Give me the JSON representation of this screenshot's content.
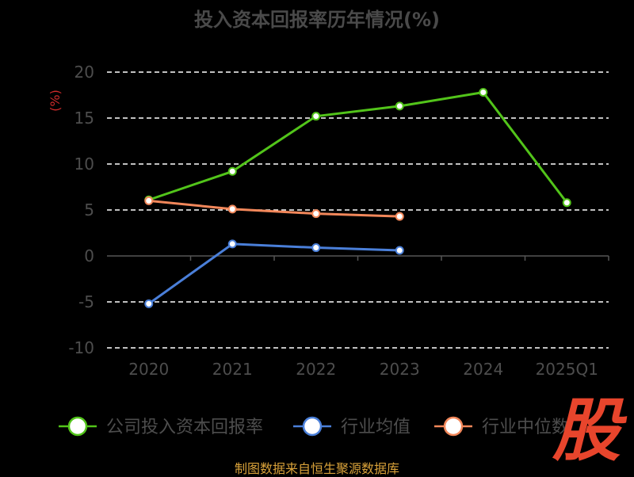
{
  "chart_data": {
    "type": "line",
    "title": "投入资本回报率历年情况(%)",
    "ylabel": "(%)",
    "categories": [
      "2020",
      "2021",
      "2022",
      "2023",
      "2024",
      "2025Q1"
    ],
    "ylim": [
      -10,
      20
    ],
    "yticks": [
      20,
      15,
      10,
      5,
      0,
      -5,
      -10
    ],
    "grid": true,
    "legend_position": "bottom",
    "series": [
      {
        "name": "公司投入资本回报率",
        "color": "#52c41a",
        "values": [
          6.1,
          9.2,
          15.2,
          16.3,
          17.8,
          5.8
        ]
      },
      {
        "name": "行业均值",
        "color": "#4a7fd9",
        "values": [
          -5.2,
          1.3,
          0.9,
          0.6,
          null,
          null
        ]
      },
      {
        "name": "行业中位数",
        "color": "#f2875a",
        "values": [
          6.0,
          5.1,
          4.6,
          4.3,
          null,
          null
        ]
      }
    ]
  },
  "footer": "制图数据来自恒生聚源数据库",
  "brand": "股"
}
